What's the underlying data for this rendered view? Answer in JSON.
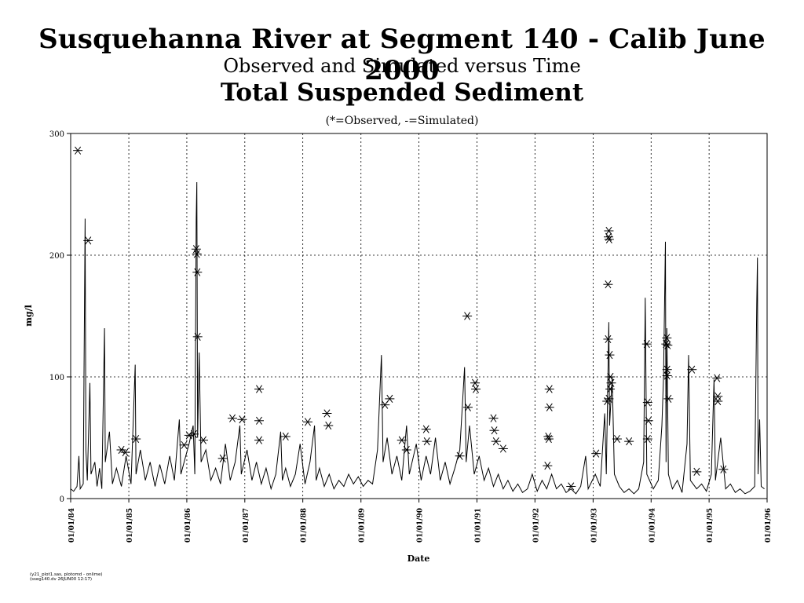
{
  "titles": {
    "line1": "Susquehanna River at Segment 140 - Calib June 2000",
    "line2": "Observed and Simulated versus Time",
    "line3": "Total Suspended Sediment",
    "legend": "(*=Observed, -=Simulated)"
  },
  "footnote": "(y21_plot1.sas, plotomd - onlime)\n(sseg140.dv 26JUN00 12:17)",
  "chart_data": {
    "type": "line",
    "xlabel": "Date",
    "ylabel": "mg/l",
    "xlim": [
      "1984-01-01",
      "1996-01-01"
    ],
    "ylim": [
      0,
      300
    ],
    "yticks": [
      0,
      100,
      200,
      300
    ],
    "xticks": [
      "01/01/84",
      "01/01/85",
      "01/01/86",
      "01/01/87",
      "01/01/88",
      "01/01/89",
      "01/01/90",
      "01/01/91",
      "01/01/92",
      "01/01/93",
      "01/01/94",
      "01/01/95",
      "01/01/96"
    ],
    "grid": true,
    "series": [
      {
        "name": "Simulated",
        "marker": "-",
        "points": [
          [
            "1984-01-01",
            8
          ],
          [
            "1984-01-20",
            6
          ],
          [
            "1984-02-10",
            10
          ],
          [
            "1984-02-22",
            35
          ],
          [
            "1984-03-01",
            8
          ],
          [
            "1984-03-20",
            12
          ],
          [
            "1984-04-01",
            230
          ],
          [
            "1984-04-06",
            40
          ],
          [
            "1984-04-15",
            15
          ],
          [
            "1984-05-01",
            95
          ],
          [
            "1984-05-08",
            20
          ],
          [
            "1984-06-01",
            30
          ],
          [
            "1984-06-15",
            10
          ],
          [
            "1984-07-01",
            25
          ],
          [
            "1984-07-15",
            8
          ],
          [
            "1984-08-01",
            140
          ],
          [
            "1984-08-06",
            30
          ],
          [
            "1984-09-01",
            55
          ],
          [
            "1984-09-20",
            12
          ],
          [
            "1984-10-15",
            25
          ],
          [
            "1984-11-15",
            10
          ],
          [
            "1984-12-15",
            35
          ],
          [
            "1985-01-15",
            12
          ],
          [
            "1985-02-10",
            110
          ],
          [
            "1985-02-15",
            20
          ],
          [
            "1985-03-15",
            40
          ],
          [
            "1985-04-15",
            15
          ],
          [
            "1985-05-15",
            30
          ],
          [
            "1985-06-15",
            10
          ],
          [
            "1985-07-15",
            28
          ],
          [
            "1985-08-15",
            12
          ],
          [
            "1985-09-15",
            35
          ],
          [
            "1985-10-15",
            15
          ],
          [
            "1985-11-15",
            65
          ],
          [
            "1985-11-25",
            20
          ],
          [
            "1985-12-15",
            30
          ],
          [
            "1986-01-15",
            45
          ],
          [
            "1986-02-10",
            60
          ],
          [
            "1986-02-20",
            20
          ],
          [
            "1986-03-01",
            230
          ],
          [
            "1986-03-05",
            260
          ],
          [
            "1986-03-10",
            50
          ],
          [
            "1986-03-20",
            120
          ],
          [
            "1986-04-01",
            30
          ],
          [
            "1986-05-01",
            40
          ],
          [
            "1986-06-01",
            15
          ],
          [
            "1986-07-01",
            25
          ],
          [
            "1986-08-01",
            12
          ],
          [
            "1986-09-01",
            45
          ],
          [
            "1986-10-01",
            15
          ],
          [
            "1986-11-01",
            30
          ],
          [
            "1986-12-01",
            60
          ],
          [
            "1986-12-10",
            20
          ],
          [
            "1987-01-15",
            40
          ],
          [
            "1987-02-15",
            15
          ],
          [
            "1987-03-15",
            30
          ],
          [
            "1987-04-15",
            12
          ],
          [
            "1987-05-15",
            25
          ],
          [
            "1987-06-15",
            8
          ],
          [
            "1987-07-15",
            20
          ],
          [
            "1987-08-15",
            55
          ],
          [
            "1987-08-25",
            15
          ],
          [
            "1987-09-15",
            25
          ],
          [
            "1987-10-15",
            10
          ],
          [
            "1987-11-15",
            20
          ],
          [
            "1987-12-15",
            45
          ],
          [
            "1988-01-15",
            12
          ],
          [
            "1988-02-15",
            30
          ],
          [
            "1988-03-15",
            60
          ],
          [
            "1988-03-25",
            15
          ],
          [
            "1988-04-15",
            25
          ],
          [
            "1988-05-15",
            10
          ],
          [
            "1988-06-15",
            20
          ],
          [
            "1988-07-15",
            8
          ],
          [
            "1988-08-15",
            15
          ],
          [
            "1988-09-15",
            10
          ],
          [
            "1988-10-15",
            20
          ],
          [
            "1988-11-15",
            12
          ],
          [
            "1988-12-15",
            18
          ],
          [
            "1989-01-15",
            10
          ],
          [
            "1989-02-15",
            15
          ],
          [
            "1989-03-15",
            12
          ],
          [
            "1989-04-15",
            40
          ],
          [
            "1989-05-10",
            118
          ],
          [
            "1989-05-20",
            30
          ],
          [
            "1989-06-15",
            50
          ],
          [
            "1989-07-15",
            20
          ],
          [
            "1989-08-15",
            35
          ],
          [
            "1989-09-15",
            15
          ],
          [
            "1989-10-15",
            60
          ],
          [
            "1989-11-01",
            20
          ],
          [
            "1989-12-15",
            45
          ],
          [
            "1990-01-15",
            15
          ],
          [
            "1990-02-15",
            35
          ],
          [
            "1990-03-15",
            20
          ],
          [
            "1990-04-15",
            50
          ],
          [
            "1990-05-15",
            15
          ],
          [
            "1990-06-15",
            30
          ],
          [
            "1990-07-15",
            12
          ],
          [
            "1990-08-15",
            25
          ],
          [
            "1990-09-15",
            40
          ],
          [
            "1990-10-15",
            108
          ],
          [
            "1990-10-25",
            30
          ],
          [
            "1990-11-15",
            60
          ],
          [
            "1990-12-15",
            20
          ],
          [
            "1991-01-15",
            35
          ],
          [
            "1991-02-15",
            15
          ],
          [
            "1991-03-15",
            25
          ],
          [
            "1991-04-15",
            10
          ],
          [
            "1991-05-15",
            20
          ],
          [
            "1991-06-15",
            8
          ],
          [
            "1991-07-15",
            15
          ],
          [
            "1991-08-15",
            6
          ],
          [
            "1991-09-15",
            12
          ],
          [
            "1991-10-15",
            5
          ],
          [
            "1991-11-15",
            8
          ],
          [
            "1991-12-15",
            20
          ],
          [
            "1992-01-15",
            6
          ],
          [
            "1992-02-15",
            15
          ],
          [
            "1992-03-15",
            8
          ],
          [
            "1992-04-15",
            20
          ],
          [
            "1992-05-15",
            8
          ],
          [
            "1992-06-15",
            12
          ],
          [
            "1992-07-15",
            5
          ],
          [
            "1992-08-15",
            8
          ],
          [
            "1992-09-15",
            4
          ],
          [
            "1992-10-15",
            10
          ],
          [
            "1992-11-15",
            35
          ],
          [
            "1992-12-01",
            8
          ],
          [
            "1993-01-15",
            20
          ],
          [
            "1993-02-15",
            10
          ],
          [
            "1993-03-15",
            70
          ],
          [
            "1993-03-25",
            20
          ],
          [
            "1993-04-10",
            145
          ],
          [
            "1993-04-15",
            60
          ],
          [
            "1993-05-01",
            100
          ],
          [
            "1993-05-15",
            20
          ],
          [
            "1993-06-15",
            10
          ],
          [
            "1993-07-15",
            5
          ],
          [
            "1993-08-15",
            8
          ],
          [
            "1993-09-15",
            4
          ],
          [
            "1993-10-15",
            8
          ],
          [
            "1993-11-15",
            30
          ],
          [
            "1993-11-25",
            165
          ],
          [
            "1993-12-05",
            20
          ],
          [
            "1994-01-15",
            8
          ],
          [
            "1994-02-15",
            15
          ],
          [
            "1994-03-10",
            60
          ],
          [
            "1994-03-20",
            100
          ],
          [
            "1994-04-01",
            211
          ],
          [
            "1994-04-05",
            30
          ],
          [
            "1994-04-10",
            140
          ],
          [
            "1994-04-20",
            20
          ],
          [
            "1994-05-15",
            8
          ],
          [
            "1994-06-15",
            15
          ],
          [
            "1994-07-15",
            5
          ],
          [
            "1994-08-15",
            45
          ],
          [
            "1994-08-25",
            118
          ],
          [
            "1994-09-05",
            15
          ],
          [
            "1994-10-15",
            8
          ],
          [
            "1994-11-15",
            12
          ],
          [
            "1994-12-15",
            6
          ],
          [
            "1995-01-15",
            20
          ],
          [
            "1995-02-01",
            98
          ],
          [
            "1995-02-10",
            15
          ],
          [
            "1995-03-15",
            50
          ],
          [
            "1995-04-15",
            8
          ],
          [
            "1995-05-15",
            12
          ],
          [
            "1995-06-15",
            5
          ],
          [
            "1995-07-15",
            8
          ],
          [
            "1995-08-15",
            4
          ],
          [
            "1995-09-15",
            6
          ],
          [
            "1995-10-15",
            10
          ],
          [
            "1995-10-28",
            160
          ],
          [
            "1995-11-01",
            198
          ],
          [
            "1995-11-05",
            20
          ],
          [
            "1995-11-15",
            65
          ],
          [
            "1995-11-25",
            10
          ],
          [
            "1995-12-15",
            8
          ]
        ]
      },
      {
        "name": "Observed",
        "marker": "*",
        "points": [
          [
            "1984-02-15",
            286
          ],
          [
            "1984-04-20",
            212
          ],
          [
            "1986-03-01",
            205
          ],
          [
            "1986-03-05",
            201
          ],
          [
            "1986-03-08",
            186
          ],
          [
            "1986-03-10",
            133
          ],
          [
            "1987-04-01",
            90
          ],
          [
            "1987-04-01",
            64
          ],
          [
            "1990-11-01",
            150
          ],
          [
            "1993-04-10",
            220
          ],
          [
            "1993-04-08",
            215
          ],
          [
            "1993-04-12",
            213
          ],
          [
            "1993-04-05",
            176
          ],
          [
            "1993-04-05",
            131
          ],
          [
            "1993-04-15",
            118
          ],
          [
            "1993-04-20",
            100
          ],
          [
            "1993-04-25",
            95
          ],
          [
            "1993-04-18",
            90
          ],
          [
            "1993-04-10",
            82
          ],
          [
            "1993-03-30",
            80
          ],
          [
            "1993-12-05",
            127
          ],
          [
            "1993-12-10",
            79
          ],
          [
            "1993-12-15",
            64
          ],
          [
            "1993-12-10",
            49
          ],
          [
            "1994-04-10",
            132
          ],
          [
            "1994-04-05",
            127
          ],
          [
            "1994-04-15",
            126
          ],
          [
            "1994-04-12",
            106
          ],
          [
            "1994-04-12",
            101
          ],
          [
            "1994-04-20",
            82
          ],
          [
            "1994-09-15",
            106
          ],
          [
            "1995-02-20",
            99
          ],
          [
            "1995-02-25",
            84
          ],
          [
            "1995-02-25",
            80
          ],
          [
            "1990-12-20",
            95
          ],
          [
            "1990-12-25",
            90
          ],
          [
            "1990-11-05",
            75
          ],
          [
            "1992-04-01",
            90
          ],
          [
            "1992-04-01",
            75
          ],
          [
            "1992-03-25",
            51
          ],
          [
            "1992-03-28",
            49
          ],
          [
            "1986-10-15",
            66
          ],
          [
            "1986-12-15",
            65
          ],
          [
            "1987-04-01",
            48
          ],
          [
            "1988-02-01",
            63
          ],
          [
            "1988-06-01",
            70
          ],
          [
            "1988-06-10",
            60
          ],
          [
            "1987-09-15",
            51
          ],
          [
            "1989-06-01",
            77
          ],
          [
            "1989-07-01",
            82
          ],
          [
            "1991-04-15",
            66
          ],
          [
            "1991-04-20",
            56
          ],
          [
            "1991-05-01",
            47
          ],
          [
            "1991-06-15",
            41
          ],
          [
            "1990-02-15",
            57
          ],
          [
            "1990-02-20",
            47
          ],
          [
            "1985-02-15",
            49
          ],
          [
            "1985-12-15",
            44
          ],
          [
            "1986-02-15",
            53
          ],
          [
            "1986-01-15",
            52
          ],
          [
            "1984-11-15",
            40
          ],
          [
            "1984-12-10",
            38
          ],
          [
            "1986-04-15",
            48
          ],
          [
            "1986-08-15",
            33
          ],
          [
            "1989-09-15",
            48
          ],
          [
            "1989-10-15",
            40
          ],
          [
            "1990-09-15",
            35
          ],
          [
            "1993-06-01",
            49
          ],
          [
            "1993-08-15",
            47
          ],
          [
            "1993-01-20",
            37
          ],
          [
            "1992-03-20",
            27
          ],
          [
            "1995-04-01",
            24
          ],
          [
            "1994-10-15",
            22
          ],
          [
            "1992-08-15",
            10
          ]
        ]
      }
    ]
  }
}
